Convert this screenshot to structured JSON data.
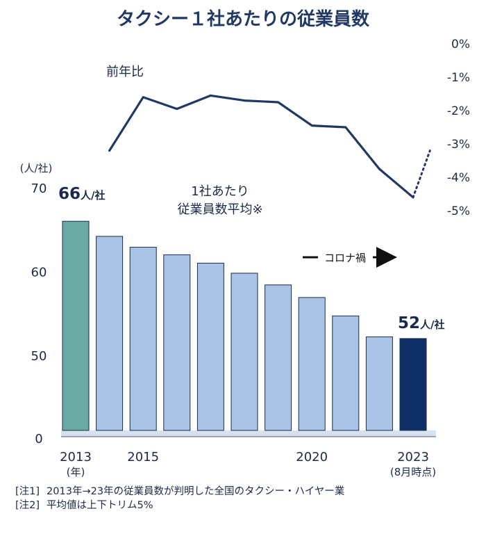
{
  "title": "タクシー１社あたりの従業員数",
  "colors": {
    "title": "#1f3864",
    "text": "#1a2a4a",
    "bar_light": "#a9c4e6",
    "bar_first": "#6aa9a4",
    "bar_last": "#0e2f66",
    "line": "#1f3864",
    "axis": "#d7e2f0"
  },
  "chart_data": {
    "type": "bar",
    "bars": {
      "x": [
        2013,
        2014,
        2015,
        2016,
        2017,
        2018,
        2019,
        2020,
        2021,
        2022,
        2023
      ],
      "values": [
        66,
        64.2,
        62.9,
        62.0,
        61.0,
        59.8,
        58.4,
        56.9,
        54.7,
        52.2,
        52
      ],
      "ylabel": "(人/社)",
      "ylim": [
        0,
        70
      ],
      "yticks": [
        "0",
        "50",
        "60",
        "70"
      ],
      "xticks": [
        {
          "label": "2013",
          "sub": "(年)",
          "x": 2013
        },
        {
          "label": "2015",
          "sub": "",
          "x": 2015
        },
        {
          "label": "2020",
          "sub": "",
          "x": 2020
        },
        {
          "label": "2023",
          "sub": "(8月時点)",
          "x": 2023
        }
      ],
      "series_label_line1": "1社あたり",
      "series_label_line2": "従業員数平均※",
      "first_value_label": "66",
      "last_value_label": "52",
      "value_unit": "人/社"
    },
    "line": {
      "name": "前年比",
      "x": [
        2014,
        2015,
        2016,
        2017,
        2018,
        2019,
        2020,
        2021,
        2022,
        2023
      ],
      "values": [
        -3.2,
        -1.6,
        -1.95,
        -1.55,
        -1.7,
        -1.75,
        -2.45,
        -2.5,
        -3.75,
        -4.6
      ],
      "projected": {
        "x": [
          2023,
          2023.5
        ],
        "values": [
          -4.6,
          -3.2
        ]
      },
      "ylim": [
        -5,
        0
      ],
      "yticks": [
        "0%",
        "-1%",
        "-2%",
        "-3%",
        "-4%",
        "-5%"
      ]
    },
    "annotation": "コロナ禍"
  },
  "notes": [
    {
      "tag": "[注1]",
      "text": "2013年→23年の従業員数が判明した全国のタクシー・ハイヤー業"
    },
    {
      "tag": "[注2]",
      "text": "平均値は上下トリム5%"
    }
  ]
}
